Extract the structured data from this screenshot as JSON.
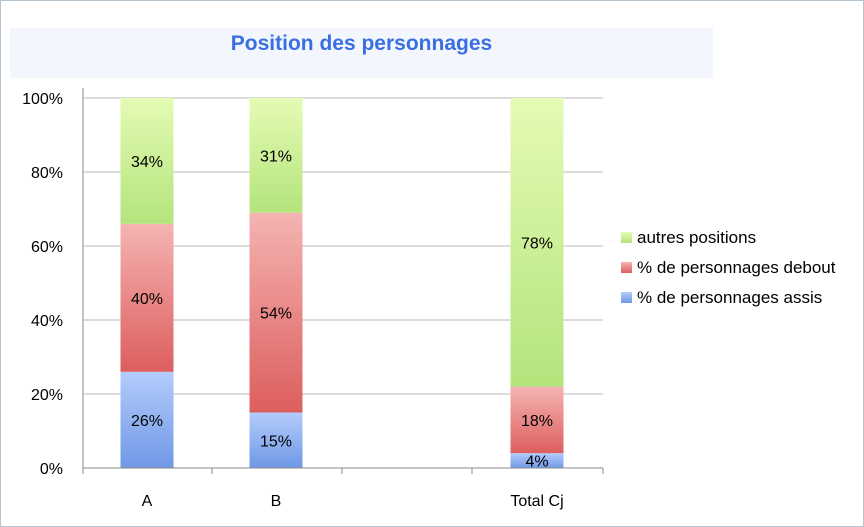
{
  "chart_data": {
    "type": "bar",
    "stacked": true,
    "title": "Position des personnages",
    "categories": [
      "A",
      "B",
      "",
      "Total Cj"
    ],
    "series": [
      {
        "name": "% de personnages assis",
        "values": [
          26,
          15,
          null,
          4
        ],
        "labels": [
          "26%",
          "15%",
          "",
          "4%"
        ],
        "color": "#7fa6ee"
      },
      {
        "name": "% de personnages debout",
        "values": [
          40,
          54,
          null,
          18
        ],
        "labels": [
          "40%",
          "54%",
          "",
          "18%"
        ],
        "color": "#ec8a8a"
      },
      {
        "name": "autres positions",
        "values": [
          34,
          31,
          null,
          78
        ],
        "labels": [
          "34%",
          "31%",
          "",
          "78%"
        ],
        "color": "#c6ee94"
      }
    ],
    "ylim": [
      0,
      100
    ],
    "yticks": [
      "0%",
      "20%",
      "40%",
      "60%",
      "80%",
      "100%"
    ],
    "grid": true,
    "legend_position": "right",
    "legend_order": [
      "autres positions",
      "% de personnages debout",
      "% de personnages assis"
    ]
  }
}
